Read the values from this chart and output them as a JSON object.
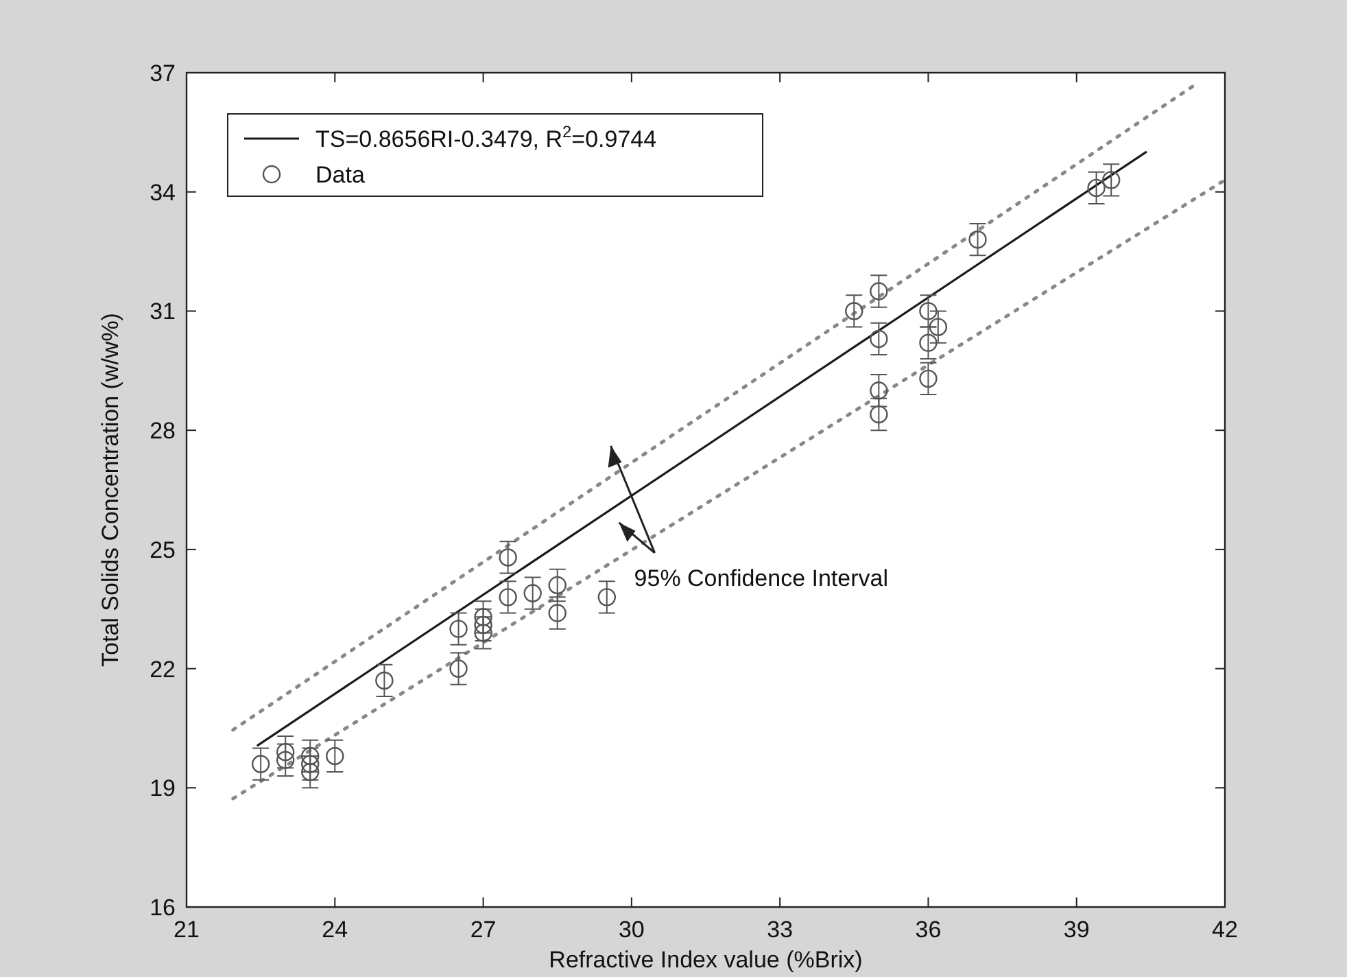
{
  "chart_data": {
    "type": "scatter",
    "xlabel": "Refractive Index value (%Brix)",
    "ylabel": "Total Solids Concentration (w/w%)",
    "xlim": [
      21,
      42
    ],
    "ylim": [
      16,
      37
    ],
    "xticks": [
      21,
      24,
      27,
      30,
      33,
      36,
      39,
      42
    ],
    "yticks": [
      16,
      19,
      22,
      25,
      28,
      31,
      34,
      37
    ],
    "grid": false,
    "legend": "top left",
    "annotations": [
      "95% Confidence Interval"
    ],
    "series": [
      {
        "name": "TS=0.8656RI-0.3479, R$^{2}$=0.9744",
        "type": "line",
        "color": "#1a1a1a",
        "line_style": "solid",
        "x": [
          22.44,
          40.4
        ],
        "values": [
          20.07,
          35.0
        ]
      },
      {
        "type": "line",
        "color": "#888888",
        "line_style": "dotted",
        "x": [
          21.94,
          41.4
        ],
        "values": [
          20.46,
          36.7
        ]
      },
      {
        "type": "line",
        "color": "#888888",
        "line_style": "dotted",
        "x": [
          21.94,
          42
        ],
        "values": [
          18.73,
          34.3
        ]
      },
      {
        "name": "Data",
        "color": "#555555",
        "marker": "circle",
        "x": [
          22.5,
          23,
          23,
          23.5,
          23.5,
          23.5,
          24,
          25,
          26.5,
          26.5,
          27,
          27,
          27,
          27.5,
          27.5,
          28,
          28.5,
          28.5,
          29.5,
          34.5,
          35,
          35,
          35,
          35,
          36,
          36,
          36,
          36.2,
          37,
          39.4,
          39.7
        ],
        "values": [
          19.6,
          19.9,
          19.7,
          19.8,
          19.6,
          19.4,
          19.8,
          21.7,
          22.0,
          23.0,
          23.1,
          23.3,
          22.9,
          24.8,
          23.8,
          23.9,
          24.1,
          23.4,
          23.8,
          31.0,
          31.5,
          30.3,
          29.0,
          28.4,
          31.0,
          30.2,
          29.3,
          30.6,
          32.8,
          34.1,
          34.3
        ],
        "errors": [
          0.4,
          0.4,
          0.4,
          0.4,
          0.4,
          0.4,
          0.4,
          0.4,
          0.4,
          0.4,
          0.4,
          0.4,
          0.4,
          0.4,
          0.4,
          0.4,
          0.4,
          0.4,
          0.4,
          0.4,
          0.4,
          0.4,
          0.4,
          0.4,
          0.4,
          0.4,
          0.4,
          0.4,
          0.4,
          0.4,
          0.4
        ]
      }
    ]
  }
}
